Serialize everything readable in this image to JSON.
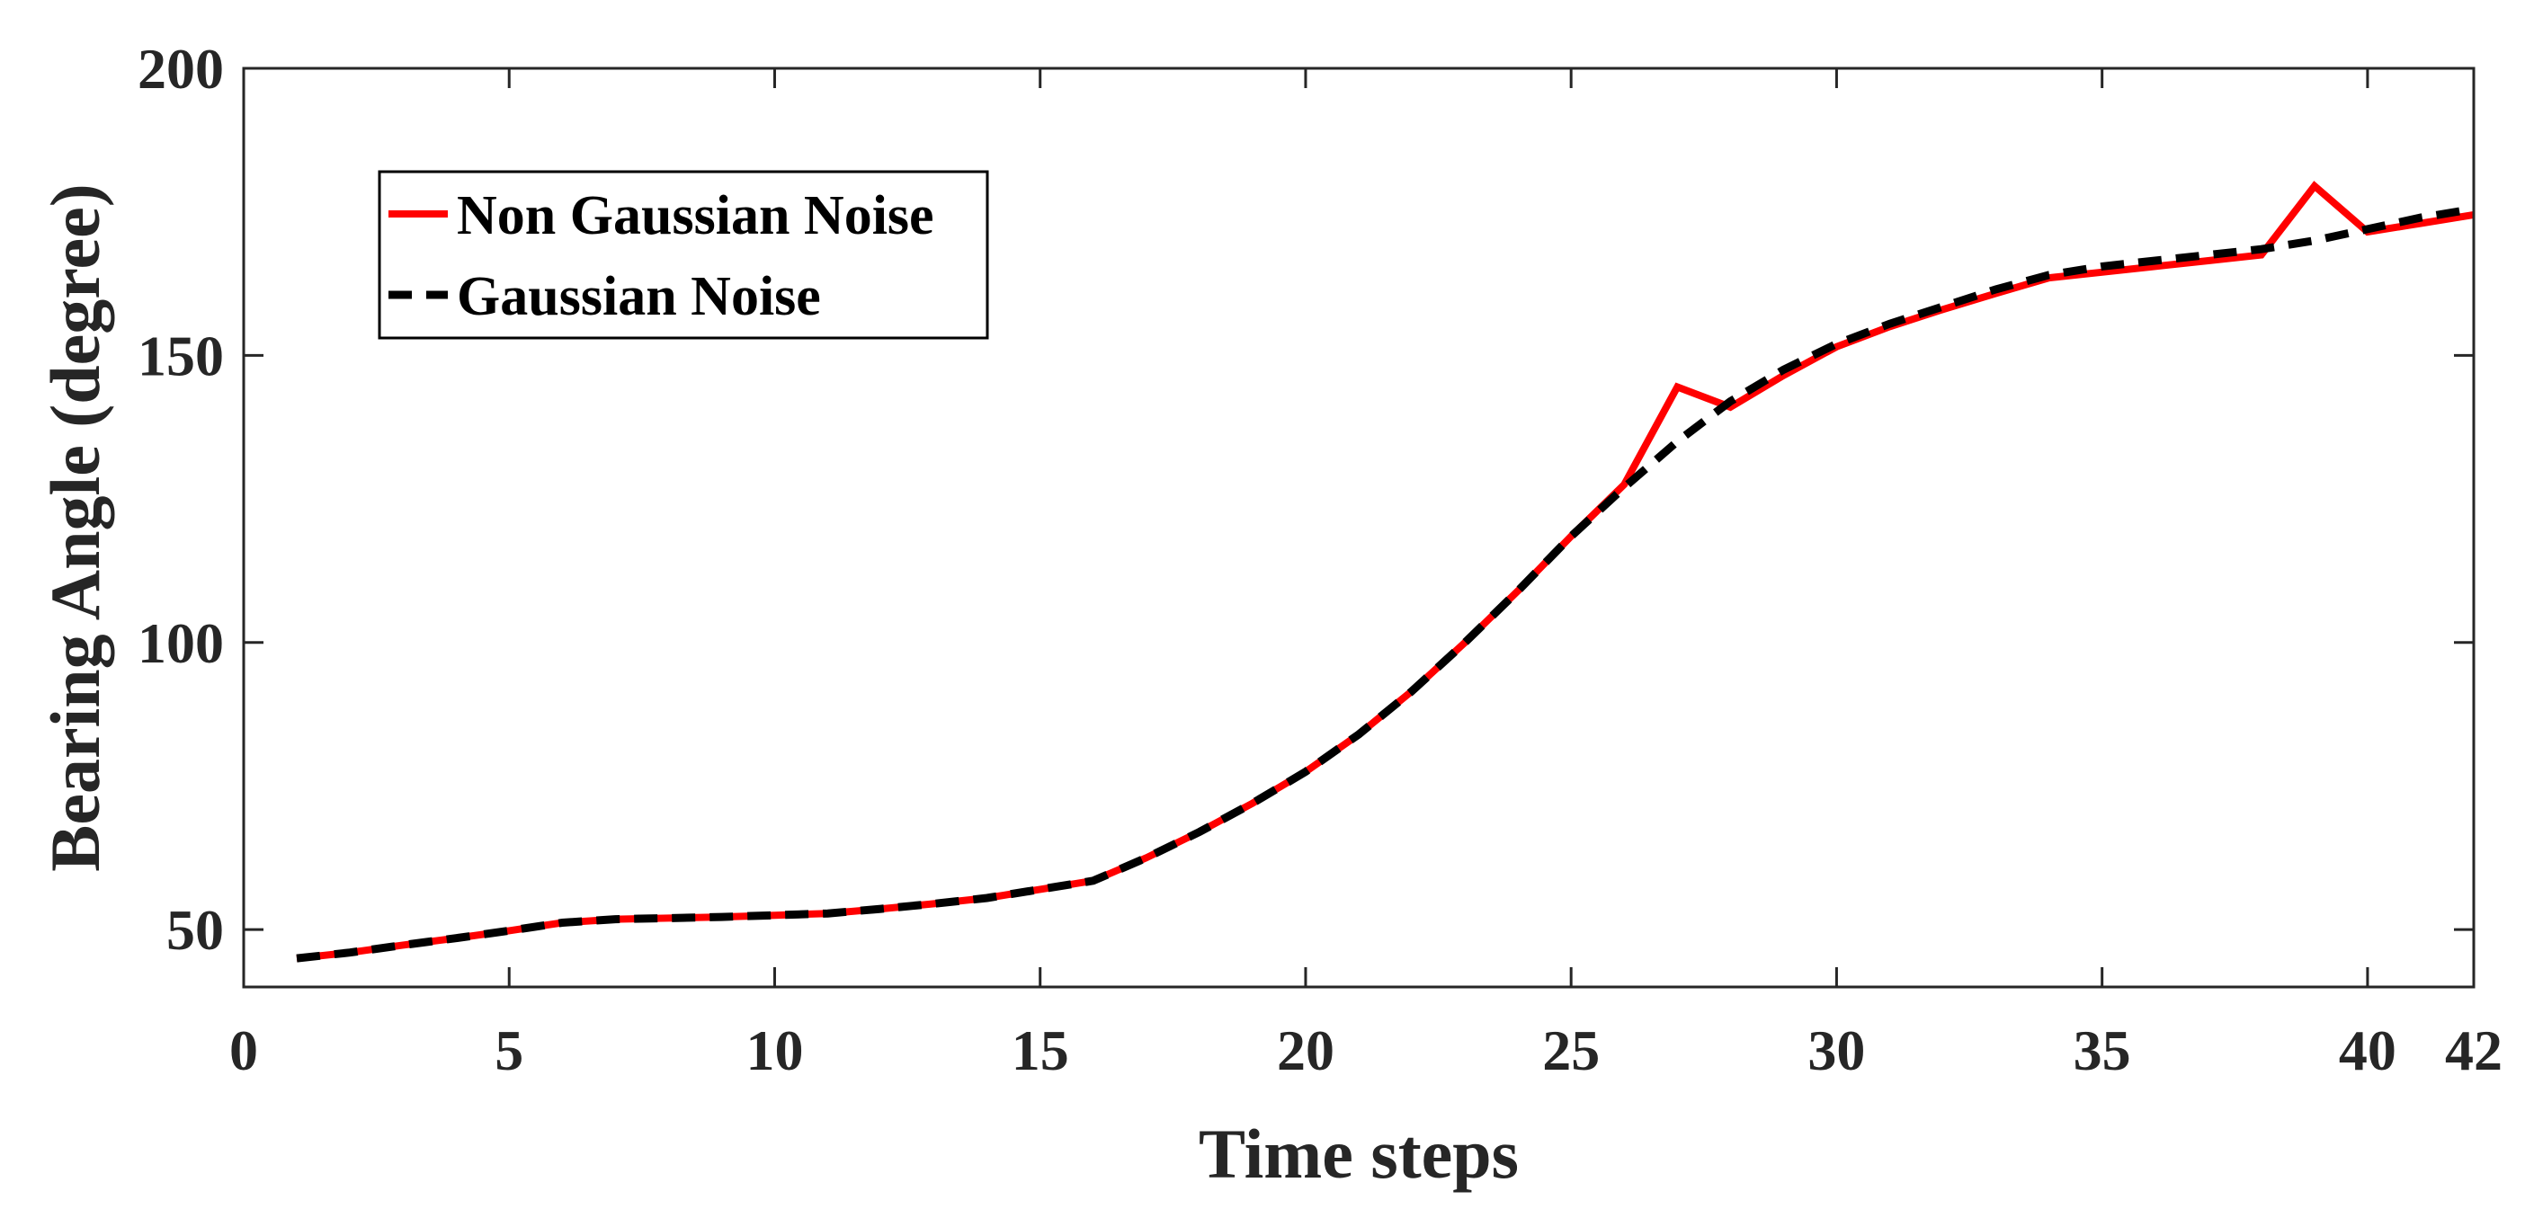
{
  "chart_data": {
    "type": "line",
    "title": "",
    "xlabel": "Time steps",
    "ylabel": "Bearing  Angle (degree)",
    "xlim": [
      0,
      42
    ],
    "ylim": [
      40,
      200
    ],
    "xticks": [
      0,
      5,
      10,
      15,
      20,
      25,
      30,
      35,
      40,
      42
    ],
    "yticks": [
      50,
      100,
      150,
      200
    ],
    "grid": false,
    "legend_position": "top-left",
    "series": [
      {
        "name": "Non Gaussian Noise",
        "color": "#ff0000",
        "style": "solid",
        "x": [
          1,
          2,
          3,
          4,
          5,
          6,
          7,
          8,
          9,
          10,
          11,
          12,
          13,
          14,
          15,
          16,
          17,
          18,
          19,
          20,
          21,
          22,
          23,
          24,
          25,
          26,
          27,
          28,
          29,
          30,
          31,
          32,
          33,
          34,
          35,
          36,
          37,
          38,
          39,
          40,
          41,
          42
        ],
        "values": [
          45,
          46,
          47.3,
          48.5,
          49.8,
          51.2,
          51.8,
          52,
          52.2,
          52.5,
          52.8,
          53.6,
          54.5,
          55.5,
          57,
          58.5,
          62.5,
          67,
          72,
          77.5,
          84,
          91.5,
          100,
          109,
          118.5,
          127.5,
          144.5,
          141,
          146.5,
          151.5,
          155,
          158,
          160.8,
          163.5,
          164.5,
          165.5,
          166.5,
          167.5,
          179.5,
          171.5,
          173,
          174.5
        ]
      },
      {
        "name": "Gaussian Noise",
        "color": "#000000",
        "style": "dashed",
        "x": [
          1,
          2,
          3,
          4,
          5,
          6,
          7,
          8,
          9,
          10,
          11,
          12,
          13,
          14,
          15,
          16,
          17,
          18,
          19,
          20,
          21,
          22,
          23,
          24,
          25,
          26,
          27,
          28,
          29,
          30,
          31,
          32,
          33,
          34,
          35,
          36,
          37,
          38,
          39,
          40,
          41,
          42
        ],
        "values": [
          45,
          46,
          47.3,
          48.5,
          49.8,
          51.2,
          51.8,
          52,
          52.2,
          52.5,
          52.8,
          53.6,
          54.5,
          55.5,
          57,
          58.5,
          62.5,
          67,
          72,
          77.5,
          84,
          91.5,
          100,
          109,
          118.5,
          127,
          135,
          142,
          147.5,
          152,
          155.5,
          158.5,
          161.5,
          164,
          165.5,
          166.5,
          167.5,
          168.5,
          170,
          172,
          174,
          175.5
        ]
      }
    ]
  }
}
